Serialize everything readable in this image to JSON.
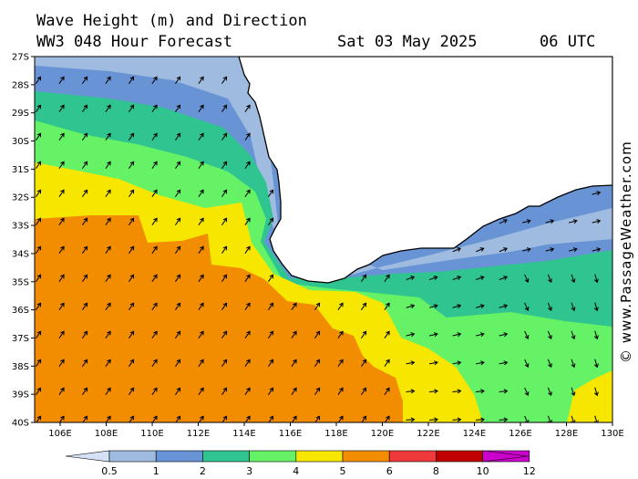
{
  "header": {
    "title_line1": "Wave Height (m) and Direction",
    "title_line2": "WW3 048 Hour Forecast",
    "forecast_date": "Sat 03 May 2025",
    "forecast_time": "06 UTC"
  },
  "credit": "© www.PassageWeather.com",
  "axes": {
    "lat_labels": [
      "27S",
      "28S",
      "29S",
      "30S",
      "31S",
      "32S",
      "33S",
      "34S",
      "35S",
      "36S",
      "37S",
      "38S",
      "39S",
      "40S"
    ],
    "lon_labels": [
      "106E",
      "108E",
      "110E",
      "112E",
      "114E",
      "116E",
      "118E",
      "120E",
      "122E",
      "124E",
      "126E",
      "128E",
      "130E"
    ]
  },
  "legend": {
    "labels": [
      "0.5",
      "1",
      "2",
      "3",
      "4",
      "5",
      "6",
      "8",
      "10",
      "12"
    ],
    "colors": [
      "#d4e1f5",
      "#9fbbe0",
      "#6894d6",
      "#2fc490",
      "#66f266",
      "#f7e600",
      "#f28c00",
      "#ee3a3a",
      "#c00000",
      "#cc00cc"
    ]
  },
  "map": {
    "land_color": "#ffffff",
    "coast_color": "#000000",
    "arrow_color": "#000000"
  }
}
